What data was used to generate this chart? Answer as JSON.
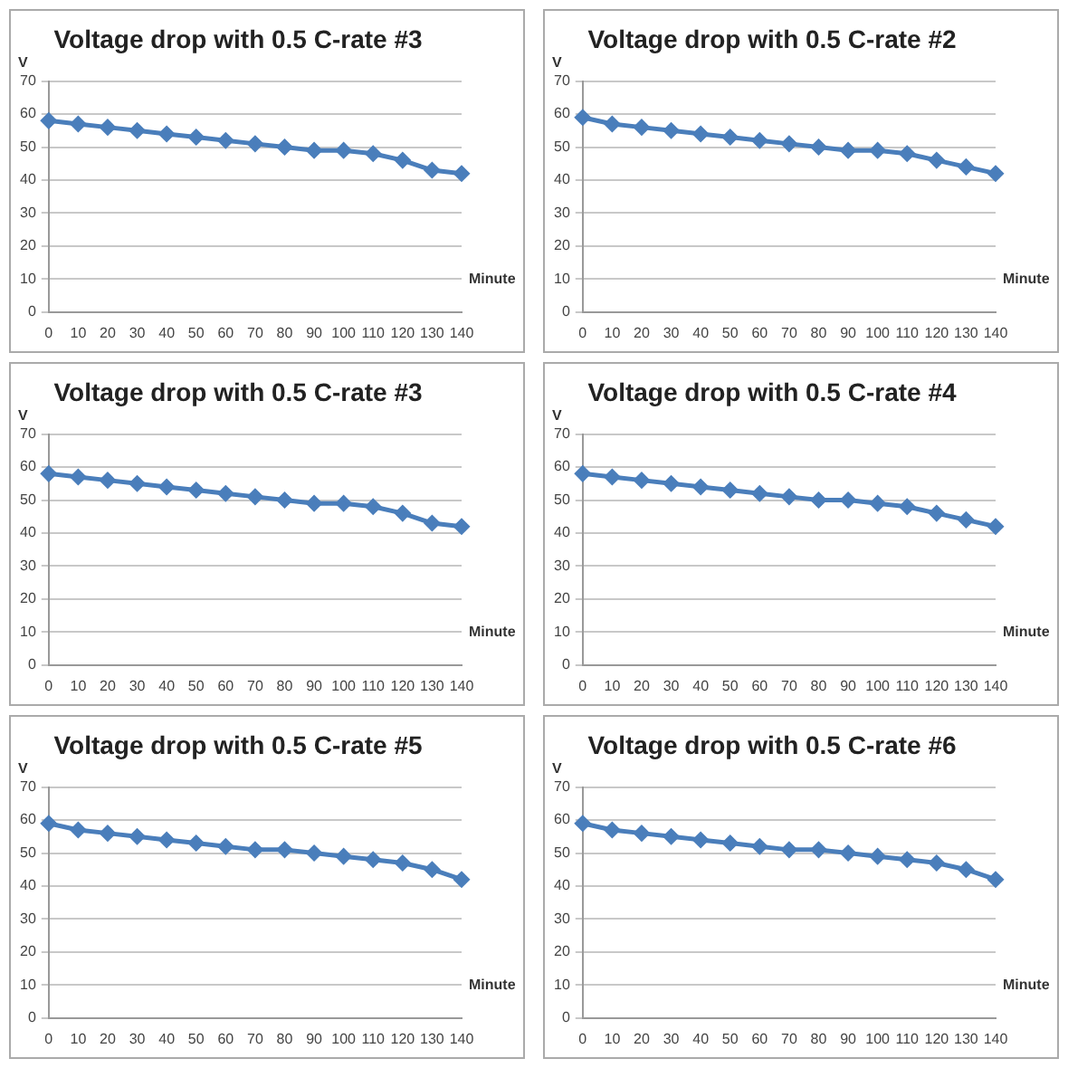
{
  "chart_data": [
    {
      "type": "line",
      "title": "Voltage drop with 0.5 C-rate #3",
      "xlabel": "Minute",
      "ylabel": "V",
      "categories": [
        "0",
        "10",
        "20",
        "30",
        "40",
        "50",
        "60",
        "70",
        "80",
        "90",
        "100",
        "110",
        "120",
        "130",
        "140"
      ],
      "series": [
        {
          "color": "#4a7ebb",
          "values": [
            58,
            57,
            56,
            55,
            54,
            53,
            52,
            51,
            50,
            49,
            49,
            48,
            46,
            43,
            42
          ]
        }
      ],
      "ylim": [
        0,
        70
      ],
      "yticks": [
        0,
        10,
        20,
        30,
        40,
        50,
        60,
        70
      ],
      "grid": "y",
      "marker": "diamond"
    },
    {
      "type": "line",
      "title": "Voltage drop with 0.5 C-rate #2",
      "xlabel": "Minute",
      "ylabel": "V",
      "categories": [
        "0",
        "10",
        "20",
        "30",
        "40",
        "50",
        "60",
        "70",
        "80",
        "90",
        "100",
        "110",
        "120",
        "130",
        "140"
      ],
      "series": [
        {
          "color": "#4a7ebb",
          "values": [
            59,
            57,
            56,
            55,
            54,
            53,
            52,
            51,
            50,
            49,
            49,
            48,
            46,
            44,
            42
          ]
        }
      ],
      "ylim": [
        0,
        70
      ],
      "yticks": [
        0,
        10,
        20,
        30,
        40,
        50,
        60,
        70
      ],
      "grid": "y",
      "marker": "diamond"
    },
    {
      "type": "line",
      "title": "Voltage drop with 0.5 C-rate #3",
      "xlabel": "Minute",
      "ylabel": "V",
      "categories": [
        "0",
        "10",
        "20",
        "30",
        "40",
        "50",
        "60",
        "70",
        "80",
        "90",
        "100",
        "110",
        "120",
        "130",
        "140"
      ],
      "series": [
        {
          "color": "#4a7ebb",
          "values": [
            58,
            57,
            56,
            55,
            54,
            53,
            52,
            51,
            50,
            49,
            49,
            48,
            46,
            43,
            42
          ]
        }
      ],
      "ylim": [
        0,
        70
      ],
      "yticks": [
        0,
        10,
        20,
        30,
        40,
        50,
        60,
        70
      ],
      "grid": "y",
      "marker": "diamond"
    },
    {
      "type": "line",
      "title": "Voltage drop with 0.5 C-rate #4",
      "xlabel": "Minute",
      "ylabel": "V",
      "categories": [
        "0",
        "10",
        "20",
        "30",
        "40",
        "50",
        "60",
        "70",
        "80",
        "90",
        "100",
        "110",
        "120",
        "130",
        "140"
      ],
      "series": [
        {
          "color": "#4a7ebb",
          "values": [
            58,
            57,
            56,
            55,
            54,
            53,
            52,
            51,
            50,
            50,
            49,
            48,
            46,
            44,
            42
          ]
        }
      ],
      "ylim": [
        0,
        70
      ],
      "yticks": [
        0,
        10,
        20,
        30,
        40,
        50,
        60,
        70
      ],
      "grid": "y",
      "marker": "diamond"
    },
    {
      "type": "line",
      "title": "Voltage drop with 0.5 C-rate #5",
      "xlabel": "Minute",
      "ylabel": "V",
      "categories": [
        "0",
        "10",
        "20",
        "30",
        "40",
        "50",
        "60",
        "70",
        "80",
        "90",
        "100",
        "110",
        "120",
        "130",
        "140"
      ],
      "series": [
        {
          "color": "#4a7ebb",
          "values": [
            59,
            57,
            56,
            55,
            54,
            53,
            52,
            51,
            51,
            50,
            49,
            48,
            47,
            45,
            42
          ]
        }
      ],
      "ylim": [
        0,
        70
      ],
      "yticks": [
        0,
        10,
        20,
        30,
        40,
        50,
        60,
        70
      ],
      "grid": "y",
      "marker": "diamond"
    },
    {
      "type": "line",
      "title": "Voltage drop with 0.5 C-rate #6",
      "xlabel": "Minute",
      "ylabel": "V",
      "categories": [
        "0",
        "10",
        "20",
        "30",
        "40",
        "50",
        "60",
        "70",
        "80",
        "90",
        "100",
        "110",
        "120",
        "130",
        "140"
      ],
      "series": [
        {
          "color": "#4a7ebb",
          "values": [
            59,
            57,
            56,
            55,
            54,
            53,
            52,
            51,
            51,
            50,
            49,
            48,
            47,
            45,
            42
          ]
        }
      ],
      "ylim": [
        0,
        70
      ],
      "yticks": [
        0,
        10,
        20,
        30,
        40,
        50,
        60,
        70
      ],
      "grid": "y",
      "marker": "diamond"
    }
  ]
}
